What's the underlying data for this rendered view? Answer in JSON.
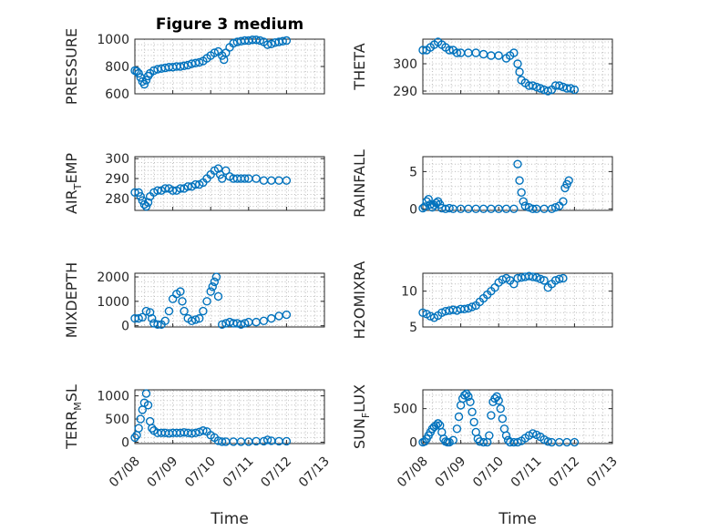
{
  "chart_data": [
    {
      "type": "scatter",
      "title": "Figure 3 medium",
      "ylabel": "PRESSURE",
      "ylim": [
        600,
        1000
      ],
      "yticks": [
        600,
        800,
        1000
      ],
      "grid": true,
      "xlim": [
        "07/08",
        "07/13"
      ],
      "points": [
        [
          0.0,
          770
        ],
        [
          0.05,
          765
        ],
        [
          0.1,
          750
        ],
        [
          0.15,
          720
        ],
        [
          0.2,
          690
        ],
        [
          0.25,
          670
        ],
        [
          0.3,
          700
        ],
        [
          0.35,
          730
        ],
        [
          0.4,
          750
        ],
        [
          0.5,
          770
        ],
        [
          0.6,
          780
        ],
        [
          0.7,
          785
        ],
        [
          0.8,
          790
        ],
        [
          0.9,
          795
        ],
        [
          1.0,
          795
        ],
        [
          1.1,
          800
        ],
        [
          1.2,
          800
        ],
        [
          1.3,
          805
        ],
        [
          1.4,
          810
        ],
        [
          1.5,
          820
        ],
        [
          1.6,
          825
        ],
        [
          1.7,
          830
        ],
        [
          1.8,
          840
        ],
        [
          1.9,
          860
        ],
        [
          2.0,
          880
        ],
        [
          2.1,
          900
        ],
        [
          2.2,
          910
        ],
        [
          2.3,
          880
        ],
        [
          2.35,
          850
        ],
        [
          2.4,
          900
        ],
        [
          2.5,
          940
        ],
        [
          2.6,
          970
        ],
        [
          2.7,
          980
        ],
        [
          2.8,
          985
        ],
        [
          2.9,
          990
        ],
        [
          3.0,
          990
        ],
        [
          3.1,
          995
        ],
        [
          3.2,
          995
        ],
        [
          3.3,
          990
        ],
        [
          3.4,
          980
        ],
        [
          3.5,
          960
        ],
        [
          3.6,
          965
        ],
        [
          3.7,
          975
        ],
        [
          3.8,
          980
        ],
        [
          3.9,
          985
        ],
        [
          4.0,
          990
        ]
      ]
    },
    {
      "type": "scatter",
      "ylabel": "THETA",
      "ylim": [
        289,
        309
      ],
      "yticks": [
        290,
        300
      ],
      "grid": true,
      "xlim": [
        "07/08",
        "07/13"
      ],
      "points": [
        [
          0.0,
          305
        ],
        [
          0.1,
          305
        ],
        [
          0.2,
          306
        ],
        [
          0.3,
          307
        ],
        [
          0.4,
          308
        ],
        [
          0.5,
          307
        ],
        [
          0.6,
          306
        ],
        [
          0.7,
          305
        ],
        [
          0.8,
          305
        ],
        [
          0.9,
          304
        ],
        [
          1.0,
          304
        ],
        [
          1.2,
          304
        ],
        [
          1.4,
          304
        ],
        [
          1.6,
          303.5
        ],
        [
          1.8,
          303
        ],
        [
          2.0,
          303
        ],
        [
          2.2,
          302
        ],
        [
          2.3,
          303
        ],
        [
          2.4,
          304
        ],
        [
          2.5,
          300
        ],
        [
          2.55,
          297
        ],
        [
          2.6,
          294
        ],
        [
          2.7,
          293
        ],
        [
          2.8,
          292
        ],
        [
          2.9,
          292
        ],
        [
          3.0,
          291.5
        ],
        [
          3.1,
          291
        ],
        [
          3.2,
          290.5
        ],
        [
          3.3,
          290
        ],
        [
          3.4,
          290.5
        ],
        [
          3.5,
          292
        ],
        [
          3.6,
          292
        ],
        [
          3.7,
          291.5
        ],
        [
          3.8,
          291
        ],
        [
          3.9,
          291
        ],
        [
          4.0,
          290.5
        ]
      ]
    },
    {
      "type": "scatter",
      "ylabel": "AIR_TEMP",
      "ylim": [
        274,
        301
      ],
      "yticks": [
        280,
        290,
        300
      ],
      "grid": true,
      "xlim": [
        "07/08",
        "07/13"
      ],
      "points": [
        [
          0.0,
          283
        ],
        [
          0.1,
          283
        ],
        [
          0.15,
          281
        ],
        [
          0.2,
          279
        ],
        [
          0.25,
          277
        ],
        [
          0.3,
          276
        ],
        [
          0.35,
          278
        ],
        [
          0.4,
          281
        ],
        [
          0.5,
          283
        ],
        [
          0.6,
          284
        ],
        [
          0.7,
          284
        ],
        [
          0.8,
          285
        ],
        [
          0.9,
          285
        ],
        [
          1.0,
          284
        ],
        [
          1.1,
          284
        ],
        [
          1.2,
          285
        ],
        [
          1.3,
          285
        ],
        [
          1.4,
          286
        ],
        [
          1.5,
          286
        ],
        [
          1.6,
          287
        ],
        [
          1.7,
          287
        ],
        [
          1.8,
          288
        ],
        [
          1.9,
          290
        ],
        [
          2.0,
          292
        ],
        [
          2.1,
          294
        ],
        [
          2.2,
          295
        ],
        [
          2.25,
          292
        ],
        [
          2.3,
          290
        ],
        [
          2.4,
          294
        ],
        [
          2.5,
          291
        ],
        [
          2.6,
          290
        ],
        [
          2.7,
          290
        ],
        [
          2.8,
          290
        ],
        [
          2.9,
          290
        ],
        [
          3.0,
          290
        ],
        [
          3.2,
          290
        ],
        [
          3.4,
          289
        ],
        [
          3.6,
          289
        ],
        [
          3.8,
          289
        ],
        [
          4.0,
          289
        ]
      ]
    },
    {
      "type": "scatter",
      "ylabel": "RAINFALL",
      "ylim": [
        -0.2,
        7
      ],
      "yticks": [
        0,
        5
      ],
      "grid": true,
      "xlim": [
        "07/08",
        "07/13"
      ],
      "points": [
        [
          0.0,
          0.1
        ],
        [
          0.05,
          0.3
        ],
        [
          0.1,
          1.0
        ],
        [
          0.15,
          1.3
        ],
        [
          0.2,
          0.6
        ],
        [
          0.25,
          0.2
        ],
        [
          0.3,
          0.5
        ],
        [
          0.35,
          0.8
        ],
        [
          0.4,
          1.0
        ],
        [
          0.45,
          0.6
        ],
        [
          0.5,
          0.1
        ],
        [
          0.6,
          0
        ],
        [
          0.7,
          0.1
        ],
        [
          0.8,
          0
        ],
        [
          1.0,
          0
        ],
        [
          1.2,
          0
        ],
        [
          1.4,
          0
        ],
        [
          1.6,
          0
        ],
        [
          1.8,
          0
        ],
        [
          2.0,
          0
        ],
        [
          2.2,
          0
        ],
        [
          2.4,
          0
        ],
        [
          2.5,
          6.0
        ],
        [
          2.55,
          3.8
        ],
        [
          2.6,
          2.2
        ],
        [
          2.65,
          1.0
        ],
        [
          2.7,
          0.4
        ],
        [
          2.8,
          0.2
        ],
        [
          2.9,
          0
        ],
        [
          3.0,
          0
        ],
        [
          3.2,
          0
        ],
        [
          3.4,
          0
        ],
        [
          3.5,
          0.2
        ],
        [
          3.6,
          0.4
        ],
        [
          3.7,
          1.0
        ],
        [
          3.75,
          2.8
        ],
        [
          3.8,
          3.3
        ],
        [
          3.85,
          3.8
        ]
      ]
    },
    {
      "type": "scatter",
      "ylabel": "MIXDEPTH",
      "ylim": [
        -50,
        2150
      ],
      "yticks": [
        0,
        1000,
        2000
      ],
      "grid": true,
      "xlim": [
        "07/08",
        "07/13"
      ],
      "points": [
        [
          0.0,
          300
        ],
        [
          0.1,
          300
        ],
        [
          0.2,
          350
        ],
        [
          0.3,
          600
        ],
        [
          0.4,
          550
        ],
        [
          0.45,
          300
        ],
        [
          0.5,
          100
        ],
        [
          0.6,
          50
        ],
        [
          0.7,
          50
        ],
        [
          0.8,
          200
        ],
        [
          0.9,
          600
        ],
        [
          1.0,
          1100
        ],
        [
          1.1,
          1300
        ],
        [
          1.2,
          1400
        ],
        [
          1.25,
          1000
        ],
        [
          1.3,
          600
        ],
        [
          1.4,
          300
        ],
        [
          1.5,
          200
        ],
        [
          1.6,
          250
        ],
        [
          1.7,
          300
        ],
        [
          1.8,
          600
        ],
        [
          1.9,
          1000
        ],
        [
          2.0,
          1400
        ],
        [
          2.05,
          1600
        ],
        [
          2.1,
          1800
        ],
        [
          2.15,
          2000
        ],
        [
          2.2,
          1200
        ],
        [
          2.3,
          50
        ],
        [
          2.4,
          100
        ],
        [
          2.5,
          150
        ],
        [
          2.6,
          100
        ],
        [
          2.7,
          100
        ],
        [
          2.8,
          50
        ],
        [
          2.9,
          100
        ],
        [
          3.0,
          150
        ],
        [
          3.2,
          150
        ],
        [
          3.4,
          200
        ],
        [
          3.6,
          300
        ],
        [
          3.8,
          400
        ],
        [
          4.0,
          450
        ]
      ]
    },
    {
      "type": "scatter",
      "ylabel": "H2OMIXRA",
      "ylim": [
        5,
        12.5
      ],
      "yticks": [
        5,
        10
      ],
      "grid": true,
      "xlim": [
        "07/08",
        "07/13"
      ],
      "points": [
        [
          0.0,
          7.0
        ],
        [
          0.1,
          6.8
        ],
        [
          0.2,
          6.5
        ],
        [
          0.3,
          6.3
        ],
        [
          0.4,
          6.6
        ],
        [
          0.5,
          7.0
        ],
        [
          0.6,
          7.2
        ],
        [
          0.7,
          7.3
        ],
        [
          0.8,
          7.4
        ],
        [
          0.9,
          7.3
        ],
        [
          1.0,
          7.5
        ],
        [
          1.1,
          7.5
        ],
        [
          1.2,
          7.6
        ],
        [
          1.3,
          7.8
        ],
        [
          1.4,
          8.0
        ],
        [
          1.5,
          8.5
        ],
        [
          1.6,
          9.0
        ],
        [
          1.7,
          9.5
        ],
        [
          1.8,
          10.0
        ],
        [
          1.9,
          10.5
        ],
        [
          2.0,
          11.2
        ],
        [
          2.1,
          11.6
        ],
        [
          2.2,
          11.8
        ],
        [
          2.3,
          11.5
        ],
        [
          2.4,
          11.0
        ],
        [
          2.5,
          11.8
        ],
        [
          2.6,
          11.9
        ],
        [
          2.7,
          12.0
        ],
        [
          2.8,
          12.1
        ],
        [
          2.9,
          12.0
        ],
        [
          3.0,
          11.9
        ],
        [
          3.1,
          11.7
        ],
        [
          3.2,
          11.5
        ],
        [
          3.3,
          10.5
        ],
        [
          3.4,
          11.0
        ],
        [
          3.5,
          11.5
        ],
        [
          3.6,
          11.7
        ],
        [
          3.7,
          11.8
        ]
      ]
    },
    {
      "type": "scatter",
      "ylabel": "TERR_MSL",
      "ylim": [
        -30,
        1130
      ],
      "yticks": [
        0,
        500,
        1000
      ],
      "grid": true,
      "xlim": [
        "07/08",
        "07/13"
      ],
      "xticks": [
        "07/08",
        "07/09",
        "07/10",
        "07/11",
        "07/12",
        "07/13"
      ],
      "xlabel": "Time",
      "points": [
        [
          0.0,
          100
        ],
        [
          0.05,
          150
        ],
        [
          0.1,
          300
        ],
        [
          0.15,
          500
        ],
        [
          0.2,
          700
        ],
        [
          0.25,
          850
        ],
        [
          0.3,
          1050
        ],
        [
          0.35,
          800
        ],
        [
          0.4,
          450
        ],
        [
          0.45,
          300
        ],
        [
          0.5,
          250
        ],
        [
          0.6,
          200
        ],
        [
          0.7,
          200
        ],
        [
          0.8,
          200
        ],
        [
          0.9,
          190
        ],
        [
          1.0,
          200
        ],
        [
          1.1,
          200
        ],
        [
          1.2,
          200
        ],
        [
          1.3,
          210
        ],
        [
          1.4,
          200
        ],
        [
          1.5,
          190
        ],
        [
          1.6,
          200
        ],
        [
          1.7,
          220
        ],
        [
          1.8,
          250
        ],
        [
          1.9,
          230
        ],
        [
          2.0,
          150
        ],
        [
          2.1,
          100
        ],
        [
          2.2,
          30
        ],
        [
          2.3,
          10
        ],
        [
          2.4,
          10
        ],
        [
          2.6,
          10
        ],
        [
          2.8,
          10
        ],
        [
          3.0,
          10
        ],
        [
          3.2,
          20
        ],
        [
          3.4,
          20
        ],
        [
          3.5,
          50
        ],
        [
          3.6,
          30
        ],
        [
          3.8,
          20
        ],
        [
          4.0,
          20
        ]
      ]
    },
    {
      "type": "scatter",
      "ylabel": "SUN_FLUX",
      "ylim": [
        -20,
        780
      ],
      "yticks": [
        0,
        500
      ],
      "grid": true,
      "xlim": [
        "07/08",
        "07/13"
      ],
      "xticks": [
        "07/08",
        "07/09",
        "07/10",
        "07/11",
        "07/12",
        "07/13"
      ],
      "xlabel": "Time",
      "points": [
        [
          0.0,
          0
        ],
        [
          0.05,
          10
        ],
        [
          0.1,
          50
        ],
        [
          0.15,
          100
        ],
        [
          0.2,
          150
        ],
        [
          0.25,
          200
        ],
        [
          0.3,
          230
        ],
        [
          0.35,
          250
        ],
        [
          0.4,
          280
        ],
        [
          0.45,
          250
        ],
        [
          0.5,
          150
        ],
        [
          0.55,
          50
        ],
        [
          0.6,
          10
        ],
        [
          0.65,
          0
        ],
        [
          0.7,
          0
        ],
        [
          0.8,
          30
        ],
        [
          0.9,
          200
        ],
        [
          0.95,
          380
        ],
        [
          1.0,
          550
        ],
        [
          1.05,
          650
        ],
        [
          1.1,
          700
        ],
        [
          1.15,
          720
        ],
        [
          1.2,
          680
        ],
        [
          1.25,
          600
        ],
        [
          1.3,
          450
        ],
        [
          1.35,
          300
        ],
        [
          1.4,
          150
        ],
        [
          1.45,
          50
        ],
        [
          1.5,
          10
        ],
        [
          1.6,
          0
        ],
        [
          1.7,
          0
        ],
        [
          1.75,
          100
        ],
        [
          1.8,
          400
        ],
        [
          1.85,
          600
        ],
        [
          1.9,
          650
        ],
        [
          1.95,
          680
        ],
        [
          2.0,
          620
        ],
        [
          2.05,
          500
        ],
        [
          2.1,
          350
        ],
        [
          2.15,
          200
        ],
        [
          2.2,
          100
        ],
        [
          2.25,
          30
        ],
        [
          2.3,
          0
        ],
        [
          2.4,
          0
        ],
        [
          2.5,
          0
        ],
        [
          2.6,
          20
        ],
        [
          2.7,
          60
        ],
        [
          2.8,
          100
        ],
        [
          2.9,
          130
        ],
        [
          3.0,
          110
        ],
        [
          3.1,
          80
        ],
        [
          3.2,
          40
        ],
        [
          3.3,
          10
        ],
        [
          3.4,
          0
        ],
        [
          3.6,
          0
        ],
        [
          3.8,
          0
        ],
        [
          4.0,
          0
        ]
      ]
    }
  ]
}
